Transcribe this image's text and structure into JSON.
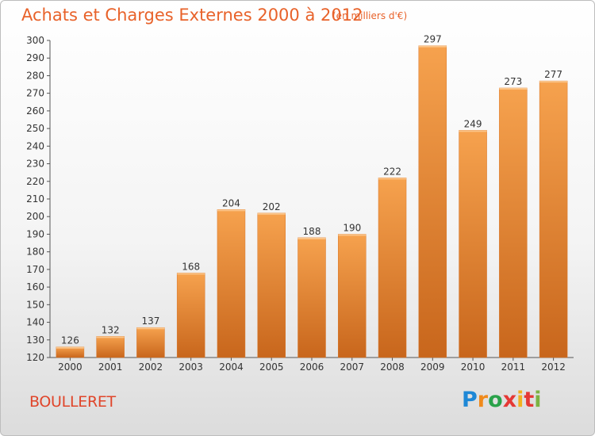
{
  "header": {
    "title": "Achats et Charges Externes 2000 à 2012",
    "unit_note": "(en milliers d'€)"
  },
  "place_name": "BOULLERET",
  "brand": {
    "letters": [
      "P",
      "r",
      "o",
      "x",
      "i",
      "t",
      "i"
    ],
    "colors": [
      "#1e88d6",
      "#f08a1c",
      "#2aa24a",
      "#e53935",
      "#f2b11f",
      "#e53935",
      "#7cb342"
    ]
  },
  "chart_data": {
    "type": "bar",
    "title": "Achats et Charges Externes 2000 à 2012",
    "subtitle": "(en milliers d'€)",
    "categories": [
      "2000",
      "2001",
      "2002",
      "2003",
      "2004",
      "2005",
      "2006",
      "2007",
      "2008",
      "2009",
      "2010",
      "2011",
      "2012"
    ],
    "values": [
      126,
      132,
      137,
      168,
      204,
      202,
      188,
      190,
      222,
      297,
      249,
      273,
      277
    ],
    "ylim": [
      120,
      300
    ],
    "yticks": [
      120,
      130,
      140,
      150,
      160,
      170,
      180,
      190,
      200,
      210,
      220,
      230,
      240,
      250,
      260,
      270,
      280,
      290,
      300
    ],
    "xlabel": "",
    "ylabel": "",
    "grid": false,
    "bar_color_top": "#f6a24e",
    "bar_color_bottom": "#c8661c"
  }
}
